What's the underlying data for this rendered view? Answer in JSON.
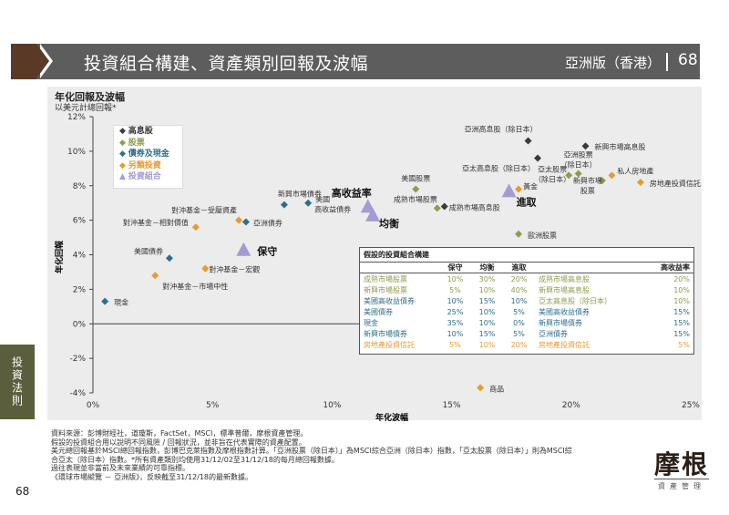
{
  "header": {
    "title": "投資組合構建、資產類別回報及波幅",
    "edition": "亞洲版（香港）",
    "page": "68"
  },
  "side_tab": "投資法則",
  "page_number": "68",
  "colors": {
    "high_dividend": "#3a3a3a",
    "equity": "#8d9c4e",
    "bonds_cash": "#2c6f8c",
    "alternatives": "#e99a2c",
    "portfolio": "#a49bd3"
  },
  "chart_data": {
    "type": "scatter",
    "title": "年化回報及波幅",
    "subtitle": "以美元計總回報*",
    "xlabel": "年化波幅",
    "ylabel": "年化回報",
    "xlim": [
      0,
      25
    ],
    "ylim": [
      -4,
      12
    ],
    "xticks": [
      "0%",
      "5%",
      "10%",
      "15%",
      "20%",
      "25%"
    ],
    "xtick_values": [
      0,
      5,
      10,
      15,
      20,
      25
    ],
    "yticks": [
      "12%",
      "10%",
      "8%",
      "6%",
      "4%",
      "2%",
      "0%",
      "-2%",
      "-4%"
    ],
    "ytick_values": [
      12,
      10,
      8,
      6,
      4,
      2,
      0,
      -2,
      -4
    ],
    "legend_position": "top-left",
    "legend": [
      {
        "key": "high_dividend",
        "label": "高息股"
      },
      {
        "key": "equity",
        "label": "股票"
      },
      {
        "key": "bonds_cash",
        "label": "債券及現金"
      },
      {
        "key": "alternatives",
        "label": "另類投資"
      },
      {
        "key": "portfolio",
        "label": "投資組合"
      }
    ],
    "points": [
      {
        "label": [
          "現金"
        ],
        "x": 0.5,
        "y": 1.3,
        "cat": "bonds_cash"
      },
      {
        "label": [
          "美國債券"
        ],
        "x": 3.2,
        "y": 3.8,
        "cat": "bonds_cash"
      },
      {
        "label": [
          "對沖基金－市場中性"
        ],
        "x": 2.6,
        "y": 2.8,
        "cat": "alternatives"
      },
      {
        "label": [
          "對沖基金－宏觀"
        ],
        "x": 4.7,
        "y": 3.2,
        "cat": "alternatives"
      },
      {
        "label": [
          "對沖基金－相對價值"
        ],
        "x": 4.3,
        "y": 5.6,
        "cat": "alternatives"
      },
      {
        "label": [
          "對沖基金－受壓資產"
        ],
        "x": 6.1,
        "y": 6.0,
        "cat": "alternatives"
      },
      {
        "label": [
          "亞洲債券"
        ],
        "x": 6.4,
        "y": 5.9,
        "cat": "bonds_cash"
      },
      {
        "label": [
          "新興市場債券"
        ],
        "x": 8.0,
        "y": 6.9,
        "cat": "bonds_cash"
      },
      {
        "label": [
          "美國",
          "高收益債券"
        ],
        "x": 9.0,
        "y": 7.0,
        "cat": "bonds_cash"
      },
      {
        "label": [
          "保守"
        ],
        "x": 6.3,
        "y": 4.2,
        "cat": "portfolio"
      },
      {
        "label": [
          "高收益率"
        ],
        "x": 11.5,
        "y": 6.7,
        "cat": "portfolio"
      },
      {
        "label": [
          "均衡"
        ],
        "x": 11.7,
        "y": 6.2,
        "cat": "portfolio"
      },
      {
        "label": [
          "美國股票"
        ],
        "x": 13.5,
        "y": 7.8,
        "cat": "equity"
      },
      {
        "label": [
          "成熟市場股票"
        ],
        "x": 14.4,
        "y": 6.7,
        "cat": "equity"
      },
      {
        "label": [
          "成熟市場高息股"
        ],
        "x": 14.7,
        "y": 6.8,
        "cat": "high_dividend"
      },
      {
        "label": [
          "進取"
        ],
        "x": 17.4,
        "y": 7.6,
        "cat": "portfolio"
      },
      {
        "label": [
          "黃金"
        ],
        "x": 17.8,
        "y": 7.8,
        "cat": "alternatives"
      },
      {
        "label": [
          "歐洲股票"
        ],
        "x": 17.8,
        "y": 5.2,
        "cat": "equity"
      },
      {
        "label": [
          "亞洲高息股（除日本）"
        ],
        "x": 18.2,
        "y": 10.6,
        "cat": "high_dividend"
      },
      {
        "label": [
          "亞太高息股（除日本）"
        ],
        "x": 18.6,
        "y": 9.6,
        "cat": "high_dividend"
      },
      {
        "label": [
          "亞太股票",
          "（除日本）"
        ],
        "x": 19.9,
        "y": 8.6,
        "cat": "equity"
      },
      {
        "label": [
          "亞洲股票",
          "（除日本）"
        ],
        "x": 20.3,
        "y": 8.7,
        "cat": "equity"
      },
      {
        "label": [
          "新興市場高息股"
        ],
        "x": 20.6,
        "y": 10.3,
        "cat": "high_dividend"
      },
      {
        "label": [
          "新興市場",
          "股票"
        ],
        "x": 21.3,
        "y": 8.3,
        "cat": "equity"
      },
      {
        "label": [
          "私人房地產"
        ],
        "x": 21.7,
        "y": 8.6,
        "cat": "alternatives"
      },
      {
        "label": [
          "房地產投資信託"
        ],
        "x": 22.9,
        "y": 8.2,
        "cat": "alternatives"
      },
      {
        "label": [
          "商品"
        ],
        "x": 16.2,
        "y": -3.7,
        "cat": "alternatives"
      }
    ]
  },
  "table": {
    "title": "假設的投資組合構建",
    "headers": [
      "",
      "保守",
      "均衡",
      "進取",
      "",
      "高收益率"
    ],
    "rows": [
      {
        "cat": "equity",
        "asset": "成熟市場股票",
        "c": "10%",
        "b": "30%",
        "a": "20%",
        "cat2": "high_dividend2",
        "asset2": "成熟市場高息股",
        "h": "20%"
      },
      {
        "cat": "equity",
        "asset": "新興市場股票",
        "c": "5%",
        "b": "10%",
        "a": "40%",
        "cat2": "high_dividend2",
        "asset2": "新興市場高息股",
        "h": "10%"
      },
      {
        "cat": "bonds_cash",
        "asset": "美國高收益債券",
        "c": "10%",
        "b": "15%",
        "a": "10%",
        "cat2": "high_dividend2",
        "asset2": "亞太高息股（除日本）",
        "h": "10%"
      },
      {
        "cat": "bonds_cash",
        "asset": "美國債券",
        "c": "25%",
        "b": "10%",
        "a": "5%",
        "cat2": "bonds_cash",
        "asset2": "美國高收益債券",
        "h": "15%"
      },
      {
        "cat": "bonds_cash",
        "asset": "現金",
        "c": "35%",
        "b": "10%",
        "a": "0%",
        "cat2": "bonds_cash",
        "asset2": "新興市場債券",
        "h": "15%"
      },
      {
        "cat": "bonds_cash",
        "asset": "新興市場債券",
        "c": "10%",
        "b": "15%",
        "a": "5%",
        "cat2": "bonds_cash",
        "asset2": "亞洲債券",
        "h": "15%"
      },
      {
        "cat": "alternatives",
        "asset": "房地產投資信託",
        "c": "5%",
        "b": "10%",
        "a": "20%",
        "cat2": "alternatives",
        "asset2": "房地產投資信託",
        "h": "5%"
      }
    ]
  },
  "footnotes": [
    "資料來源：彭博財經社，道瓊斯，FactSet，MSCI，標準普爾，摩根資產管理。",
    "假設的投資組合用以說明不同風險 / 回報狀況，並非旨在代表實際的資產配置。",
    "美元總回報基於MSCI總回報指數，彭博巴克萊指數及摩根指數計算。「亞洲股票（除日本）」為MSCI綜合亞洲（除日本）指數，「亞太股票（除日本）」則為MSCI綜",
    "合亞太（除日本）指數。*所有資產類別均使用31/12/02至31/12/18的每月總回報數據。",
    "過往表現並非當前及未來業績的可靠指標。",
    "《環球市場縱覽 － 亞洲版》，反映截至31/12/18的最新數據。"
  ],
  "logo": {
    "name": "摩根",
    "tagline": "資產管理"
  }
}
